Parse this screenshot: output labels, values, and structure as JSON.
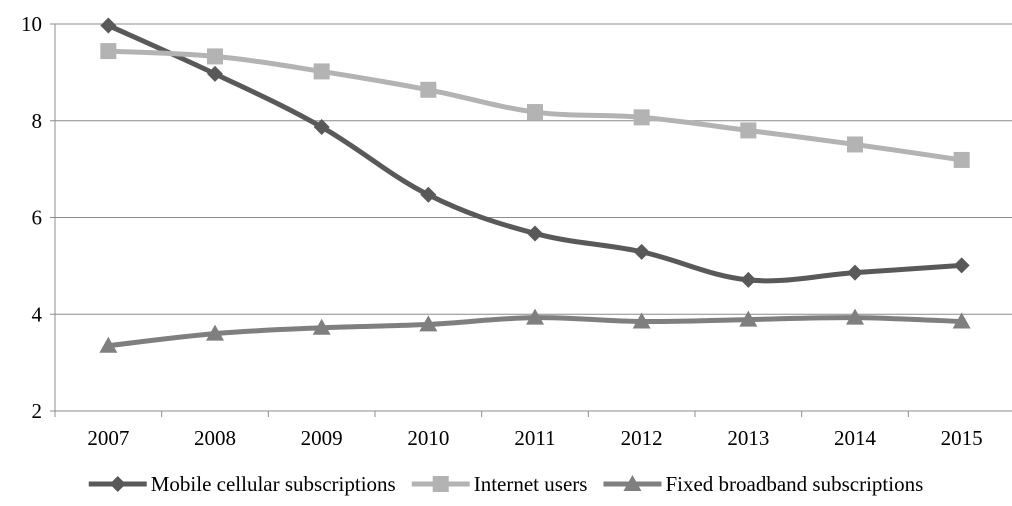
{
  "chart_data": {
    "type": "line",
    "title": "",
    "xlabel": "",
    "ylabel": "",
    "categories": [
      "2007",
      "2008",
      "2009",
      "2010",
      "2011",
      "2012",
      "2013",
      "2014",
      "2015"
    ],
    "ylim": [
      2,
      10
    ],
    "yticks": [
      2,
      4,
      6,
      8,
      10
    ],
    "grid": "horizontal",
    "legend_position": "bottom",
    "series": [
      {
        "name": "Mobile cellular subscriptions",
        "marker": "diamond",
        "color": "#595959",
        "values": [
          9.97,
          8.97,
          7.87,
          6.47,
          5.67,
          5.29,
          4.71,
          4.86,
          5.01
        ]
      },
      {
        "name": "Internet users",
        "marker": "square",
        "color": "#b3b3b3",
        "values": [
          9.44,
          9.33,
          9.02,
          8.64,
          8.18,
          8.07,
          7.8,
          7.51,
          7.19
        ]
      },
      {
        "name": "Fixed broadband subscriptions",
        "marker": "triangle",
        "color": "#7f7f7f",
        "values": [
          3.35,
          3.6,
          3.72,
          3.79,
          3.93,
          3.85,
          3.89,
          3.93,
          3.85
        ]
      }
    ]
  }
}
